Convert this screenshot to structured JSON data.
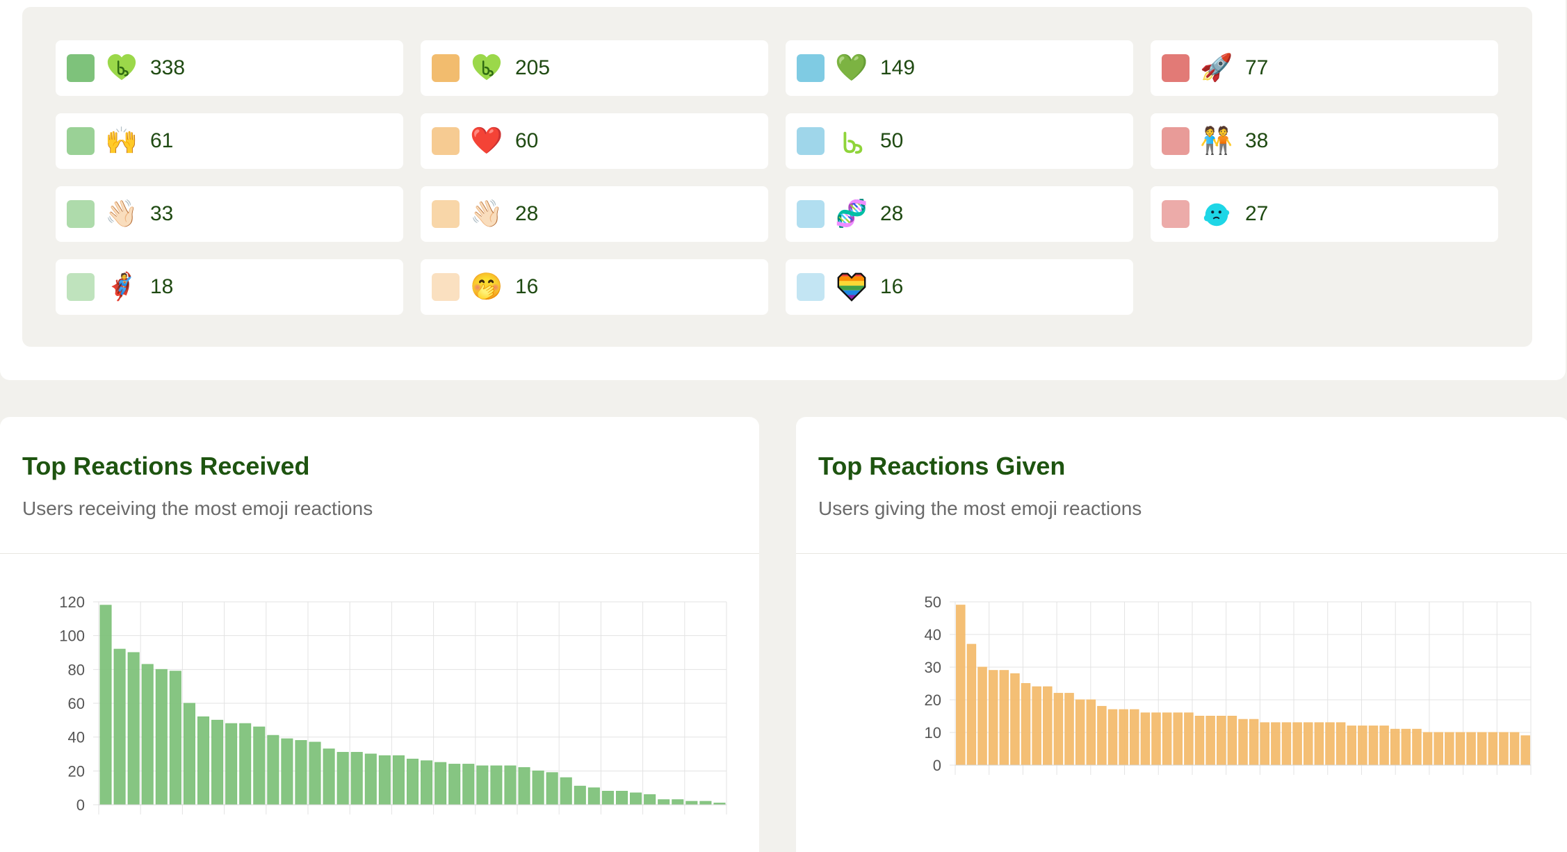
{
  "colors": {
    "green": "#7fc27b",
    "orange": "#f3bc6e",
    "title_green": "#1e5410",
    "count_green": "#1f4a12"
  },
  "legend": {
    "items": [
      {
        "swatch": "#7ec27b",
        "icon": "green-heart-logo-icon",
        "glyph": "",
        "count": "338"
      },
      {
        "swatch": "#f2bc6e",
        "icon": "green-heart-logo-icon",
        "glyph": "",
        "count": "205"
      },
      {
        "swatch": "#7fcbe3",
        "icon": "green-heart-icon",
        "glyph": "💚",
        "count": "149"
      },
      {
        "swatch": "#e27a76",
        "icon": "rocket-icon",
        "glyph": "🚀",
        "count": "77"
      },
      {
        "swatch": "#9ad196",
        "icon": "raising-hands-icon",
        "glyph": "🙌",
        "count": "61"
      },
      {
        "swatch": "#f6cb92",
        "icon": "red-heart-icon",
        "glyph": "❤️",
        "count": "60"
      },
      {
        "swatch": "#9fd6ea",
        "icon": "green-logo-icon",
        "glyph": "",
        "count": "50"
      },
      {
        "swatch": "#e89b98",
        "icon": "people-high-five-icon",
        "glyph": "🧑‍🤝‍🧑",
        "count": "38"
      },
      {
        "swatch": "#aedbab",
        "icon": "waving-hand-icon",
        "glyph": "👋🏻",
        "count": "33"
      },
      {
        "swatch": "#f8d6a8",
        "icon": "waving-hand-icon",
        "glyph": "👋🏻",
        "count": "28"
      },
      {
        "swatch": "#b1def0",
        "icon": "dna-icon",
        "glyph": "🧬",
        "count": "28"
      },
      {
        "swatch": "#ecaba9",
        "icon": "cyan-blob-icon",
        "glyph": "",
        "count": "27"
      },
      {
        "swatch": "#bfe3bd",
        "icon": "superhero-icon",
        "glyph": "🦸",
        "count": "18"
      },
      {
        "swatch": "#fae0c0",
        "icon": "face-hand-over-mouth-icon",
        "glyph": "🤭",
        "count": "16"
      },
      {
        "swatch": "#c3e5f3",
        "icon": "rainbow-heart-icon",
        "glyph": "",
        "count": "16"
      }
    ]
  },
  "received": {
    "title": "Top Reactions Received",
    "subtitle": "Users receiving the most emoji reactions"
  },
  "given": {
    "title": "Top Reactions Given",
    "subtitle": "Users giving the most emoji reactions"
  },
  "chart_data": [
    {
      "type": "bar",
      "title": "Top Reactions Received",
      "color": "#7fc27b",
      "ylim": [
        0,
        120
      ],
      "yticks": [
        0,
        20,
        40,
        60,
        80,
        100,
        120
      ],
      "grid": true,
      "values": [
        118,
        92,
        90,
        83,
        80,
        79,
        60,
        52,
        50,
        48,
        48,
        46,
        41,
        39,
        38,
        37,
        33,
        31,
        31,
        30,
        29,
        29,
        27,
        26,
        25,
        24,
        24,
        23,
        23,
        23,
        22,
        20,
        19,
        16,
        11,
        10,
        8,
        8,
        7,
        6,
        3,
        3,
        2,
        2,
        1
      ]
    },
    {
      "type": "bar",
      "title": "Top Reactions Given",
      "color": "#f3bc6e",
      "ylim": [
        0,
        50
      ],
      "yticks": [
        0,
        10,
        20,
        30,
        40,
        50
      ],
      "grid": true,
      "values": [
        49,
        37,
        30,
        29,
        29,
        28,
        25,
        24,
        24,
        22,
        22,
        20,
        20,
        18,
        17,
        17,
        17,
        16,
        16,
        16,
        16,
        16,
        15,
        15,
        15,
        15,
        14,
        14,
        13,
        13,
        13,
        13,
        13,
        13,
        13,
        13,
        12,
        12,
        12,
        12,
        11,
        11,
        11,
        10,
        10,
        10,
        10,
        10,
        10,
        10,
        10,
        10,
        9
      ]
    }
  ]
}
